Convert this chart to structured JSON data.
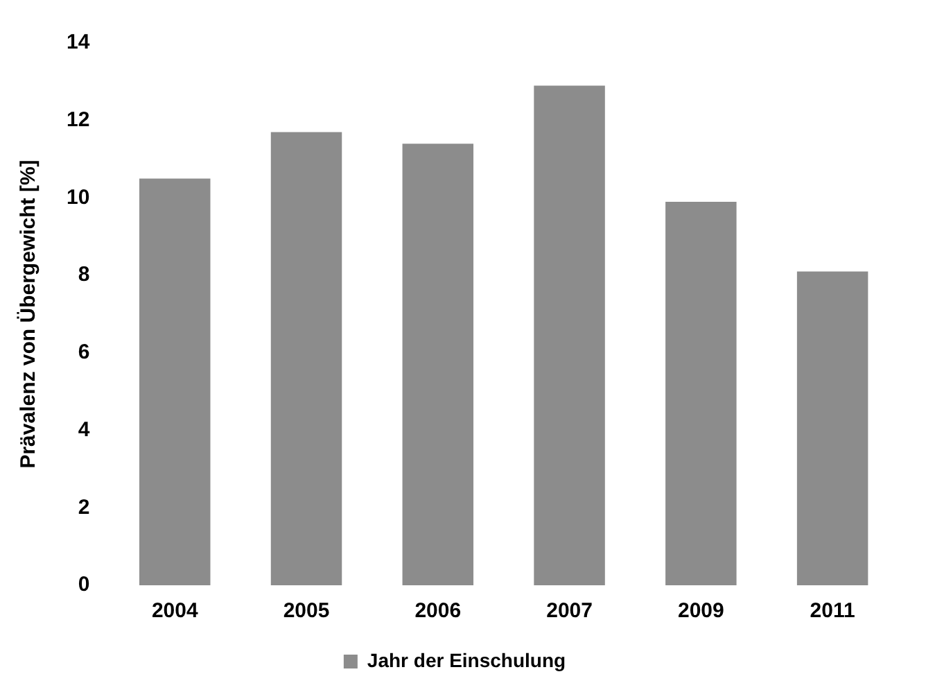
{
  "chart_data": {
    "type": "bar",
    "ylabel": "Prävalenz von Übergewicht [%]",
    "categories": [
      "2004",
      "2005",
      "2006",
      "2007",
      "2009",
      "2011"
    ],
    "series": [
      {
        "name": "Jahr der Einschulung",
        "color": "#8c8c8c",
        "values": [
          10.5,
          11.7,
          11.4,
          12.9,
          9.9,
          8.1
        ]
      }
    ],
    "ylim": [
      0,
      14
    ],
    "yticks": [
      0,
      2,
      4,
      6,
      8,
      10,
      12,
      14
    ],
    "grid": false,
    "legend": "bottom"
  }
}
